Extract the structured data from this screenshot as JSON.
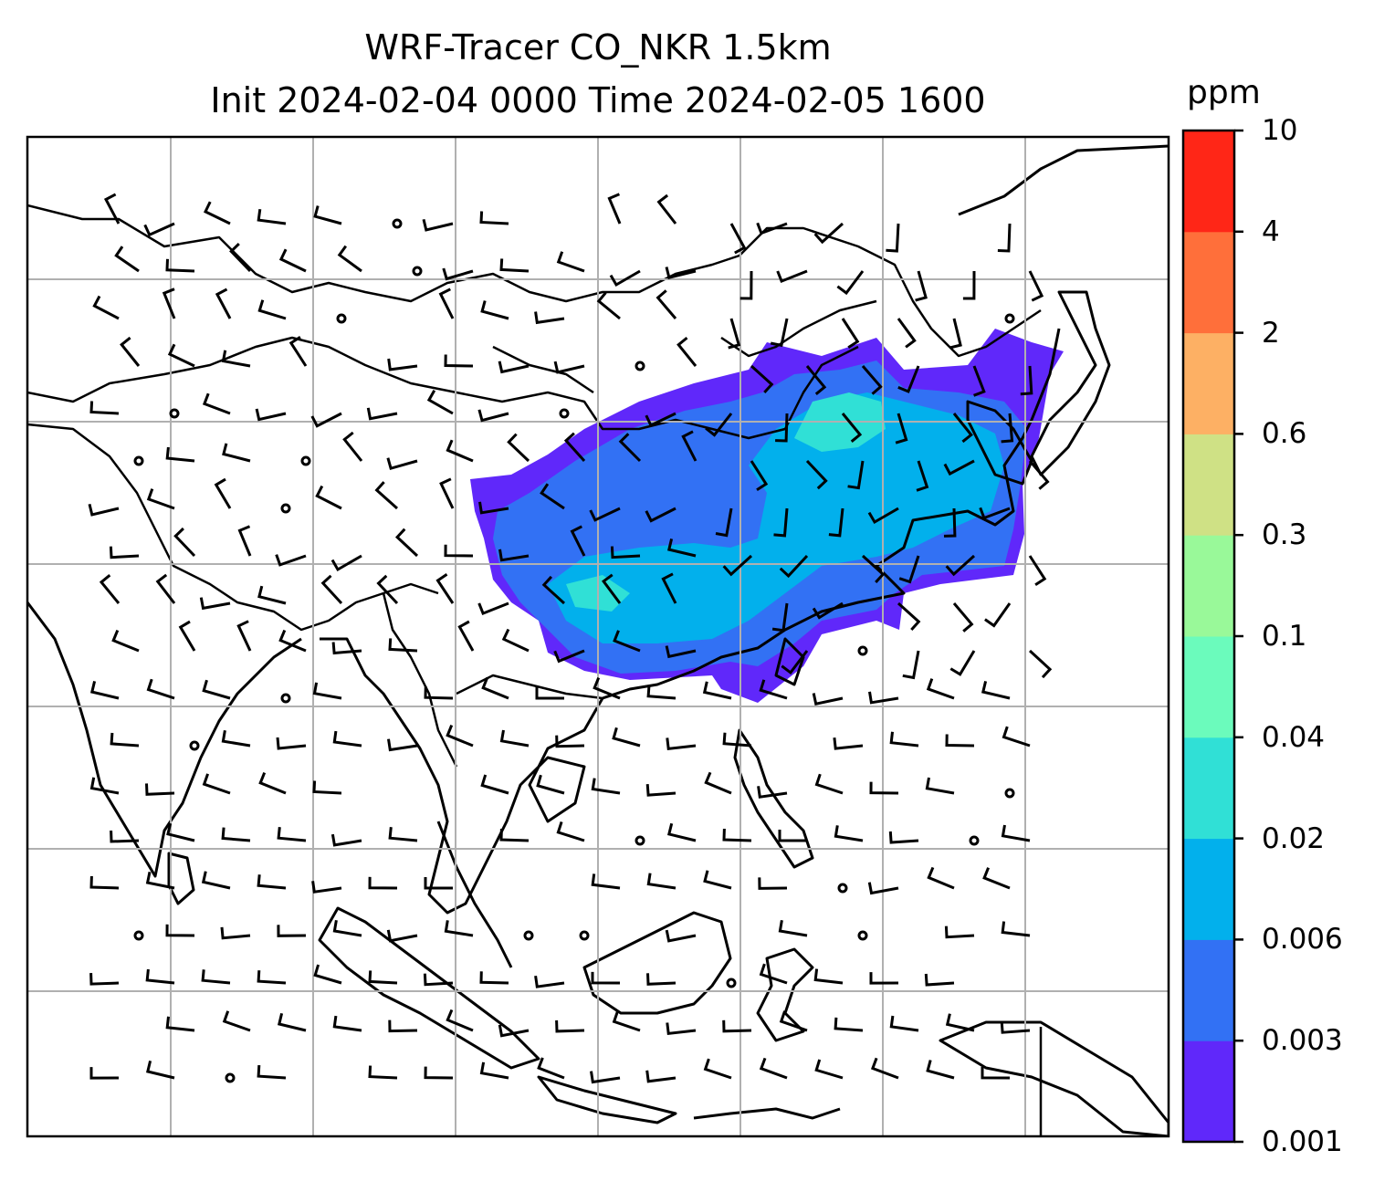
{
  "title_line1": "WRF-Tracer CO_NKR 1.5km",
  "title_line2": "Init 2024-02-04 0000 Time 2024-02-05 1600",
  "colorbar": {
    "unit": "ppm",
    "levels": [
      "0.001",
      "0.003",
      "0.006",
      "0.02",
      "0.04",
      "0.1",
      "0.3",
      "0.6",
      "2",
      "4",
      "10"
    ],
    "colors": [
      "#6028fa",
      "#3271f4",
      "#02b0ec",
      "#30e0d6",
      "#6bfbbc",
      "#99f999",
      "#cfe185",
      "#fdb064",
      "#ff6f3a",
      "#ff2617"
    ]
  },
  "map": {
    "gridlines": true,
    "tracer_plume_colors": {
      "outer": "#6028fa",
      "mid": "#3271f4",
      "inner": "#02b0ec",
      "core": "#30e0d6"
    }
  }
}
